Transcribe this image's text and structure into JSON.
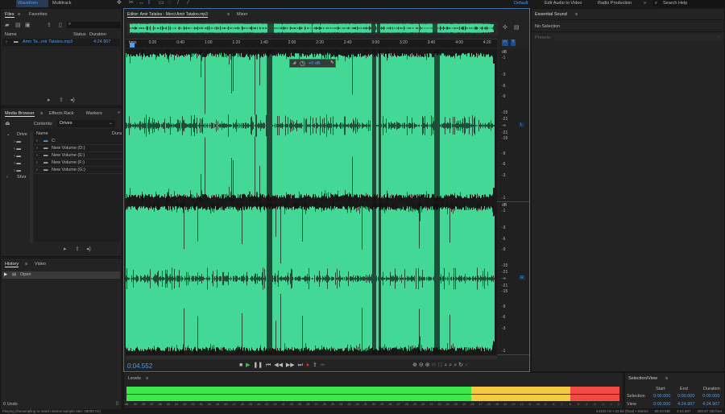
{
  "topbar": {
    "waveform": "Waveform",
    "multitrack": "Multitrack",
    "workspaces": [
      "Default",
      "Edit Audio to Video",
      "Radio Production"
    ],
    "more": "»",
    "search_placeholder": "Search Help"
  },
  "files": {
    "tabs": [
      "Files",
      "Favorites"
    ],
    "columns": {
      "name": "Name",
      "status": "Status",
      "duration": "Duration"
    },
    "items": [
      {
        "name": "Amir Ta...mir Tataloo.mp3",
        "duration": "4:24.907"
      }
    ]
  },
  "media_browser": {
    "tabs": [
      "Media Browser",
      "Effects Rack",
      "Markers"
    ],
    "contents_label": "Contents:",
    "contents_value": "Drives",
    "tree": [
      "Drive",
      "Shor"
    ],
    "columns": {
      "name": "Name",
      "duration": "Dura"
    },
    "items": [
      "C:",
      "New Volume (D:)",
      "New Volume (E:)",
      "New Volume (F:)",
      "New Volume (G:)"
    ]
  },
  "history": {
    "tabs": [
      "History",
      "Video"
    ],
    "items": [
      "Open"
    ],
    "undo_count": "0 Undo"
  },
  "editor": {
    "tabs": [
      "Editor: Amir Tataloo - Merci Amir Tataloo.mp3",
      "Mixer"
    ],
    "ruler": [
      "hms",
      "0:20",
      "0:40",
      "1:00",
      "1:20",
      "1:40",
      "2:00",
      "2:20",
      "2:40",
      "3:00",
      "3:20",
      "3:40",
      "4:00",
      "4:20"
    ],
    "db_scale": [
      "dB",
      "-1",
      "-3",
      "-6",
      "-9",
      "-15",
      "-21",
      "-∞",
      "-21",
      "-15",
      "-9",
      "-6",
      "-3",
      "-1"
    ],
    "channels": [
      "L",
      "R"
    ],
    "hud_value": "+0 dB",
    "time": "0:04.552",
    "waveform_color": "#44d896"
  },
  "essential_sound": {
    "title": "Essential Sound",
    "status": "No Selection",
    "presets_label": "Presets:"
  },
  "levels": {
    "title": "Levels",
    "ticks": [
      "dB",
      "-59",
      "-58",
      "-57",
      "-56",
      "-55",
      "-54",
      "-53",
      "-52",
      "-51",
      "-50",
      "-49",
      "-48",
      "-47",
      "-46",
      "-45",
      "-44",
      "-43",
      "-42",
      "-41",
      "-40",
      "-39",
      "-38",
      "-37",
      "-36",
      "-35",
      "-34",
      "-33",
      "-32",
      "-31",
      "-30",
      "-29",
      "-28",
      "-27",
      "-26",
      "-25",
      "-24",
      "-23",
      "-22",
      "-21",
      "-20",
      "-19",
      "-18",
      "-17",
      "-16",
      "-15",
      "-14",
      "-13",
      "-12",
      "-11",
      "-10",
      "-9",
      "-8",
      "-7",
      "-6",
      "-5",
      "-4",
      "-3",
      "-2",
      "-1",
      "0"
    ],
    "colors": {
      "green": "#3ee84a",
      "yellow": "#f3cb3f",
      "red": "#ef4a44"
    }
  },
  "selection_view": {
    "title": "Selection/View",
    "columns": [
      "Start",
      "End",
      "Duration"
    ],
    "rows": [
      {
        "label": "Selection",
        "start": "0:00.000",
        "end": "0:00.000",
        "duration": "0:00.000"
      },
      {
        "label": "View",
        "start": "0:00.000",
        "end": "4:24.907",
        "duration": "4:24.907"
      }
    ]
  },
  "status": {
    "left": "Playing (Resampling to match device sample rate: 48000 Hz)",
    "format": "44100 Hz • 32-bit (float) • Stereo",
    "size": "89.34 MB",
    "duration": "4:24.907",
    "free": "250.87 GB free"
  }
}
